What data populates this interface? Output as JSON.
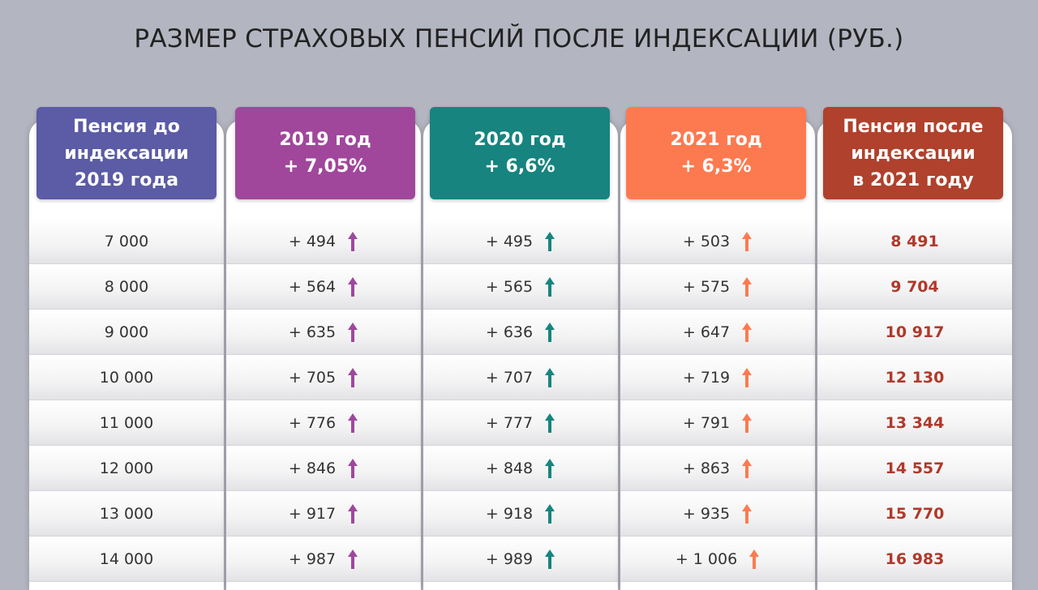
{
  "title": "РАЗМЕР СТРАХОВЫХ ПЕНСИЙ ПОСЛЕ ИНДЕКСАЦИИ (РУБ.)",
  "colors": {
    "base": "#5b5ba6",
    "y2019": "#a0479c",
    "y2020": "#17847f",
    "y2021": "#fd7a50",
    "result": "#b0412c"
  },
  "chart_data": {
    "type": "table",
    "columns": [
      {
        "key": "base",
        "header": "Пенсия до\nиндексации\n2019 года"
      },
      {
        "key": "y2019",
        "header": "2019 год\n+ 7,05%"
      },
      {
        "key": "y2020",
        "header": "2020 год\n+ 6,6%"
      },
      {
        "key": "y2021",
        "header": "2021 год\n+ 6,3%"
      },
      {
        "key": "result",
        "header": "Пенсия после\nиндексации\nв 2021 году"
      }
    ],
    "rows": [
      {
        "base": "7 000",
        "y2019": "+ 494",
        "y2020": "+ 495",
        "y2021": "+ 503",
        "result": "8 491"
      },
      {
        "base": "8 000",
        "y2019": "+ 564",
        "y2020": "+ 565",
        "y2021": "+ 575",
        "result": "9 704"
      },
      {
        "base": "9 000",
        "y2019": "+ 635",
        "y2020": "+ 636",
        "y2021": "+ 647",
        "result": "10 917"
      },
      {
        "base": "10 000",
        "y2019": "+ 705",
        "y2020": "+ 707",
        "y2021": "+ 719",
        "result": "12 130"
      },
      {
        "base": "11 000",
        "y2019": "+ 776",
        "y2020": "+ 777",
        "y2021": "+ 791",
        "result": "13 344"
      },
      {
        "base": "12 000",
        "y2019": "+ 846",
        "y2020": "+ 848",
        "y2021": "+ 863",
        "result": "14 557"
      },
      {
        "base": "13 000",
        "y2019": "+ 917",
        "y2020": "+ 918",
        "y2021": "+ 935",
        "result": "15 770"
      },
      {
        "base": "14 000",
        "y2019": "+ 987",
        "y2020": "+ 989",
        "y2021": "+ 1 006",
        "result": "16 983"
      }
    ]
  }
}
